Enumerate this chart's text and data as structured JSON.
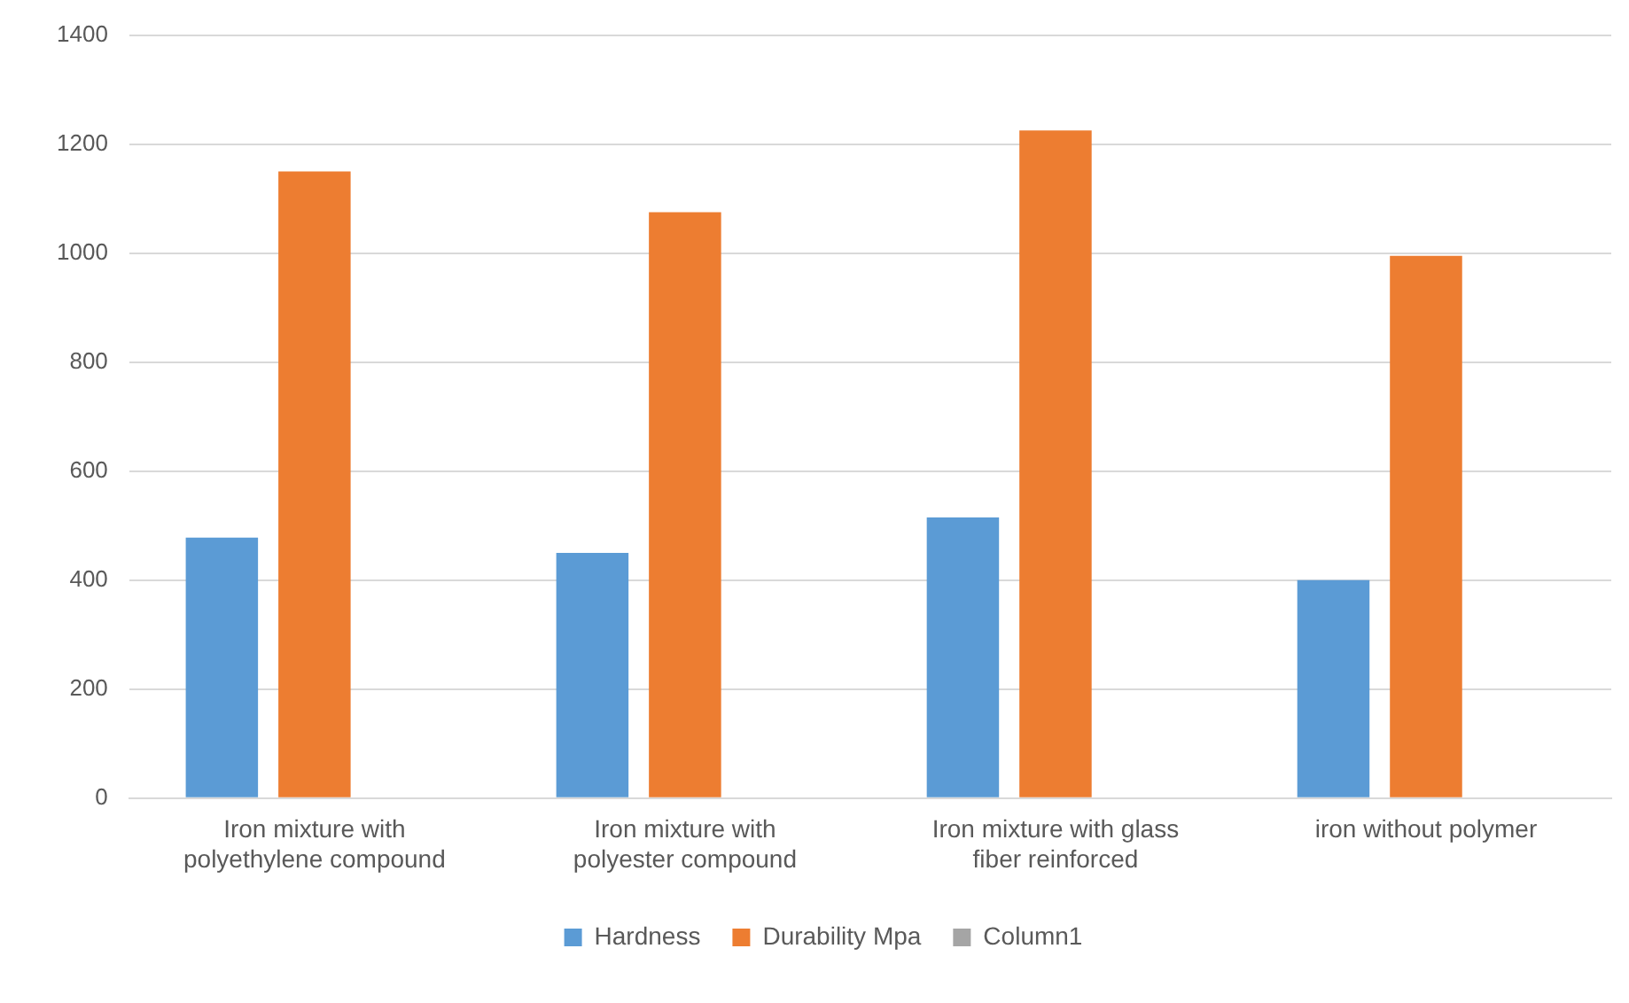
{
  "chart_data": {
    "type": "bar",
    "categories": [
      "Iron mixture with polyethylene compound",
      "Iron mixture with polyester compound",
      "Iron mixture with glass fiber reinforced",
      "iron without polymer"
    ],
    "series": [
      {
        "name": "Hardness",
        "color": "#5b9bd5",
        "values": [
          478,
          450,
          515,
          400
        ]
      },
      {
        "name": "Durability Mpa",
        "color": "#ed7d31",
        "values": [
          1150,
          1075,
          1225,
          995
        ]
      },
      {
        "name": "Column1",
        "color": "#a5a5a5",
        "values": [
          null,
          null,
          null,
          null
        ]
      }
    ],
    "ylim": [
      0,
      1400
    ],
    "yticks": [
      0,
      200,
      400,
      600,
      800,
      1000,
      1200,
      1400
    ],
    "grid": "y",
    "legend": "bottom"
  }
}
